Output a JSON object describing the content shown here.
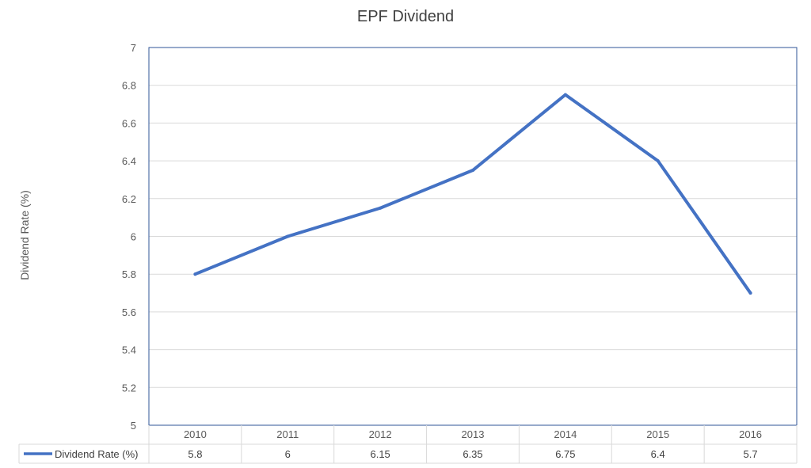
{
  "chart_data": {
    "type": "line",
    "title": "EPF Dividend",
    "xlabel": "",
    "ylabel": "Dividend Rate (%)",
    "categories": [
      "2010",
      "2011",
      "2012",
      "2013",
      "2014",
      "2015",
      "2016"
    ],
    "series": [
      {
        "name": "Dividend Rate (%)",
        "values": [
          5.8,
          6,
          6.15,
          6.35,
          6.75,
          6.4,
          5.7
        ],
        "color": "#4472C4"
      }
    ],
    "ylim": [
      5,
      7
    ],
    "yticks": [
      "5",
      "5.2",
      "5.4",
      "5.6",
      "5.8",
      "6",
      "6.2",
      "6.4",
      "6.6",
      "6.8",
      "7"
    ],
    "grid": true,
    "legend": "data-table-left",
    "data_table": {
      "row_label": "Dividend Rate (%)",
      "cells": [
        "5.8",
        "6",
        "6.15",
        "6.35",
        "6.75",
        "6.4",
        "5.7"
      ]
    }
  }
}
